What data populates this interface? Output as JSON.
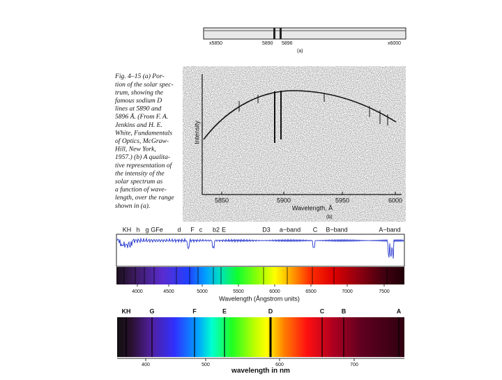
{
  "figure_a": {
    "labels": [
      "x5850",
      "5890",
      "5896",
      "x6000"
    ],
    "panel": "(a)"
  },
  "caption": {
    "lines": [
      "Fig. 4–15 (a) Por-",
      "tion of the solar spec-",
      "trum, showing the",
      "famous sodium D",
      "lines at 5890 and",
      "5896 Å. (From F. A.",
      "Jenkins and H. E.",
      "White, Fundamentals",
      "of Optics, McGraw-",
      "Hill, New York,",
      "1957.) (b) A qualita-",
      "tive representation of",
      "the intensity of the",
      "solar spectrum as",
      "a function of wave-",
      "length, over the range",
      "shown in (a)."
    ]
  },
  "figure_b": {
    "y_label": "Intensity",
    "x_label": "Wavelength, Å",
    "x_ticks": [
      "5850",
      "5900",
      "5950",
      "6000"
    ],
    "panel": "(b)"
  },
  "figure_c": {
    "line_labels": [
      "KH",
      "h",
      "g",
      "GFe",
      "d",
      "F",
      "c",
      "b2",
      "E",
      "D3",
      "a−band",
      "C",
      "B−band",
      "A−band"
    ],
    "x_ticks": [
      "4000",
      "4500",
      "5000",
      "5500",
      "6000",
      "6500",
      "7000",
      "7500"
    ],
    "x_label": "Wavelength (Ångstrom units)"
  },
  "figure_d": {
    "line_labels": [
      "KH",
      "G",
      "F",
      "E",
      "D",
      "C",
      "B",
      "A"
    ],
    "x_ticks": [
      "400",
      "500",
      "600",
      "700"
    ],
    "x_label": "wavelength in nm"
  }
}
